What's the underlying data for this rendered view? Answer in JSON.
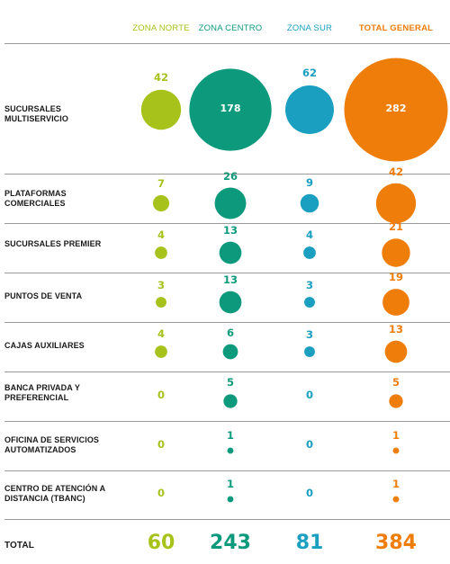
{
  "chart_data": {
    "type": "bubble-table",
    "columns": [
      "ZONA NORTE",
      "ZONA CENTRO",
      "ZONA SUR",
      "TOTAL GENERAL"
    ],
    "column_colors": [
      "#a6c21b",
      "#0d9a7c",
      "#1a9fc0",
      "#ef7d0a"
    ],
    "rows": [
      {
        "label": "SUCURSALES MULTISERVICIO",
        "values": [
          42,
          178,
          62,
          282
        ]
      },
      {
        "label": "PLATAFORMAS COMERCIALES",
        "values": [
          7,
          26,
          9,
          42
        ]
      },
      {
        "label": "SUCURSALES PREMIER",
        "values": [
          4,
          13,
          4,
          21
        ]
      },
      {
        "label": "PUNTOS DE VENTA",
        "values": [
          3,
          13,
          3,
          19
        ]
      },
      {
        "label": "CAJAS AUXILIARES",
        "values": [
          4,
          6,
          3,
          13
        ]
      },
      {
        "label": "BANCA PRIVADA Y PREFERENCIAL",
        "values": [
          0,
          5,
          0,
          5
        ]
      },
      {
        "label": "OFICINA DE SERVICIOS AUTOMATIZADOS",
        "values": [
          0,
          1,
          0,
          1
        ]
      },
      {
        "label": "CENTRO DE ATENCIÓN A DISTANCIA (TBANC)",
        "values": [
          0,
          1,
          0,
          1
        ]
      }
    ],
    "total": {
      "label": "TOTAL",
      "values": [
        60,
        243,
        81,
        384
      ]
    }
  }
}
